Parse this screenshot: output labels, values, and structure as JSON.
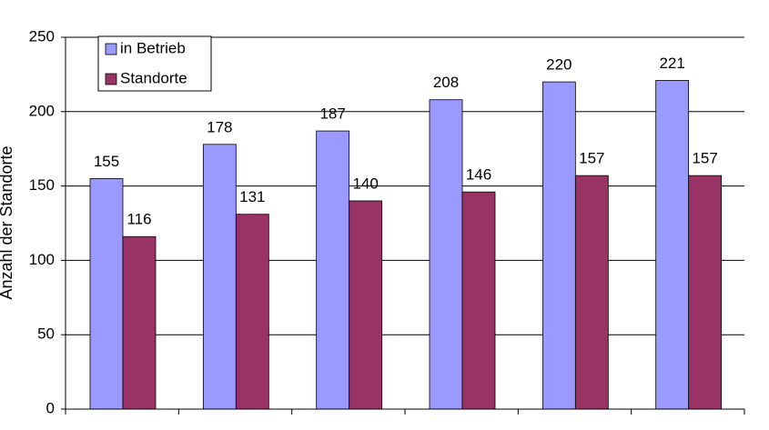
{
  "chart_data": {
    "type": "bar",
    "y_label": "Anzahl der Standorte",
    "categories": [
      null,
      null,
      null,
      null,
      null,
      null
    ],
    "series": [
      {
        "name": "in Betrieb",
        "color": "#9999ff",
        "values": [
          155,
          178,
          187,
          208,
          220,
          221
        ]
      },
      {
        "name": "Standorte",
        "color": "#993366",
        "values": [
          116,
          131,
          140,
          146,
          157,
          157
        ]
      }
    ],
    "ylim": [
      0,
      250
    ],
    "yticks": [
      0,
      50,
      100,
      150,
      200,
      250
    ],
    "grid": true,
    "legend": "top-left"
  }
}
